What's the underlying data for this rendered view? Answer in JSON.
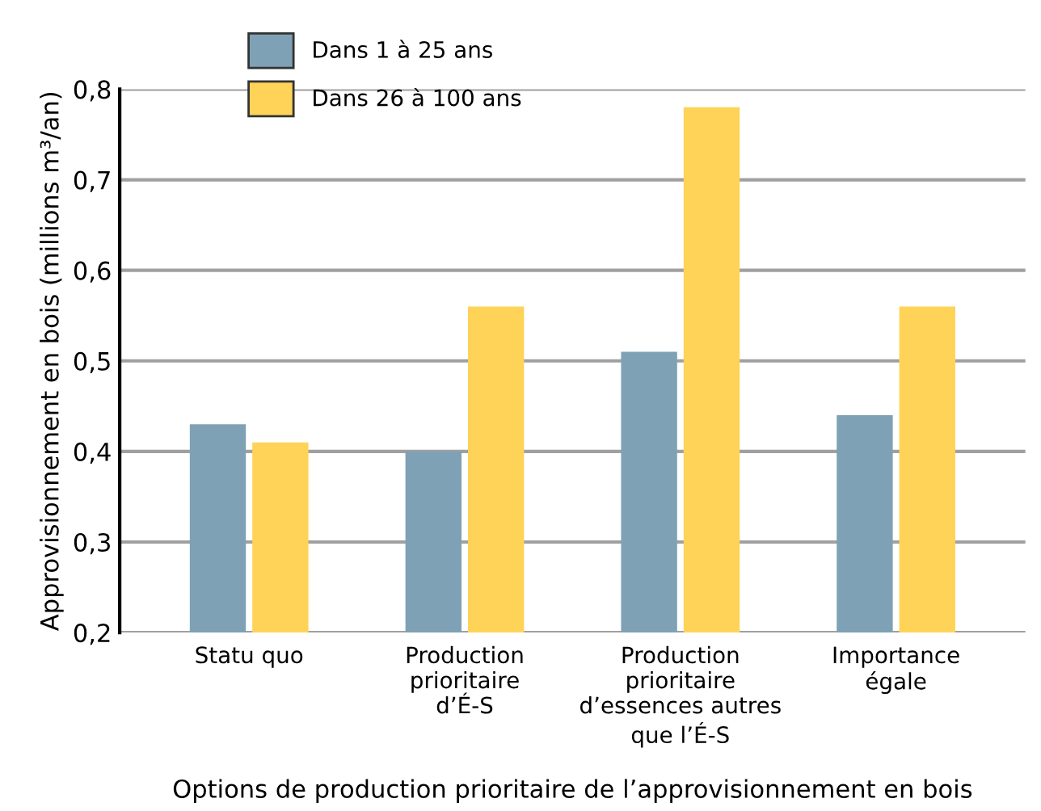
{
  "chart_data": {
    "type": "bar",
    "xlabel": "Options de production prioritaire de l’approvisionnement en bois",
    "ylabel": "Approvisionnement en bois (millions m³/an)",
    "categories": [
      "Statu quo",
      "Production\nprioritaire\nd’É-S",
      "Production\nprioritaire\nd’essences autres\nque l’É-S",
      "Importance\négale"
    ],
    "series": [
      {
        "name": "Dans 1 à 25 ans",
        "color": "#7fa1b5",
        "values": [
          0.43,
          0.4,
          0.51,
          0.44
        ]
      },
      {
        "name": "Dans 26 à 100 ans",
        "color": "#fed357",
        "values": [
          0.41,
          0.56,
          0.78,
          0.56
        ]
      }
    ],
    "ylim": [
      0.2,
      0.8
    ],
    "yticks": [
      {
        "value": 0.2,
        "label": "0,2"
      },
      {
        "value": 0.3,
        "label": "0,3"
      },
      {
        "value": 0.4,
        "label": "0,4"
      },
      {
        "value": 0.5,
        "label": "0,5"
      },
      {
        "value": 0.6,
        "label": "0,6"
      },
      {
        "value": 0.7,
        "label": "0,7"
      },
      {
        "value": 0.8,
        "label": "0,8"
      }
    ],
    "grid": "y",
    "legend": "top left"
  }
}
